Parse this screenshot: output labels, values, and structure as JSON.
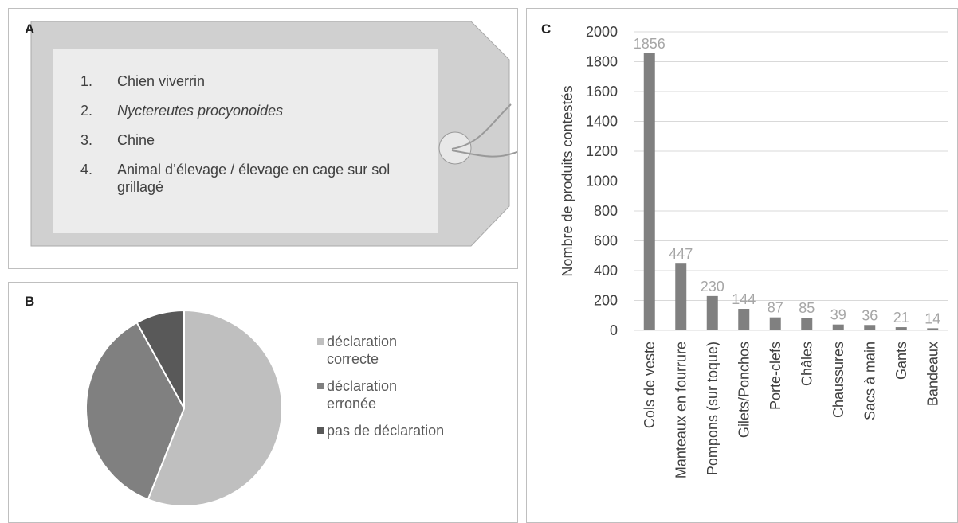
{
  "tag": {
    "label": "A",
    "items": [
      {
        "number": "1.",
        "text": "Chien viverrin"
      },
      {
        "number": "2.",
        "text": "Nyctereutes procyonoides"
      },
      {
        "number": "3.",
        "text": "Chine"
      },
      {
        "number": "4.",
        "text": "Animal d’élevage / élevage en cage sur sol grillagé"
      }
    ]
  },
  "chart_data": [
    {
      "type": "pie",
      "panel_label": "B",
      "categories": [
        "déclaration correcte",
        "déclaration erronée",
        "pas de déclaration"
      ],
      "values": [
        56,
        36,
        8
      ],
      "colors": [
        "#bfbfbf",
        "#808080",
        "#595959"
      ],
      "legend": "right"
    },
    {
      "type": "bar",
      "panel_label": "C",
      "ylabel": "Nombre de produits contestés",
      "categories": [
        "Cols de veste",
        "Manteaux en fourrure",
        "Pompons (sur toque)",
        "Gilets/Ponchos",
        "Porte-clefs",
        "Châles",
        "Chaussures",
        "Sacs à main",
        "Gants",
        "Bandeaux"
      ],
      "values": [
        1856,
        447,
        230,
        144,
        87,
        85,
        39,
        36,
        21,
        14
      ],
      "color": "#808080",
      "ylim": [
        0,
        2000
      ],
      "yticks": [
        0,
        200,
        400,
        600,
        800,
        1000,
        1200,
        1400,
        1600,
        1800,
        2000
      ],
      "grid": true
    }
  ]
}
